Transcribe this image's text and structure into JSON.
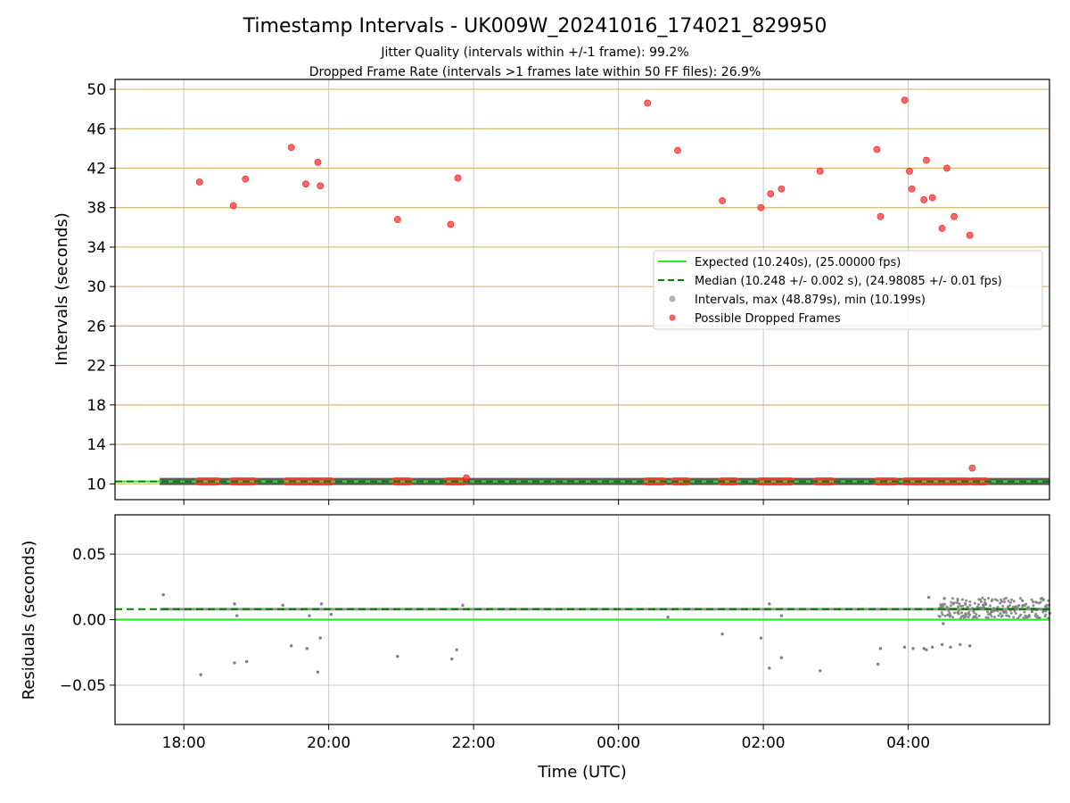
{
  "figure": {
    "title": "Timestamp Intervals - UK009W_20241016_174021_829950",
    "subtitle_1": "Jitter Quality (intervals within +/-1 frame): 99.2%",
    "subtitle_2": "Dropped Frame Rate (intervals >1 frames late within 50 FF files): 26.9%"
  },
  "colors": {
    "expected": "#22ee22",
    "median": "#008000",
    "intervals": "#808080",
    "dropped": "#ff3333",
    "hgrid_top": "#d4b868",
    "grid": "#c8c8c8"
  },
  "chart_data": [
    {
      "type": "scatter",
      "panel": "intervals",
      "ylabel": "Intervals (seconds)",
      "ylim": [
        8.4,
        51.0
      ],
      "xlim": [
        "17:03",
        "05:57"
      ],
      "yticks": [
        10,
        14,
        18,
        22,
        26,
        30,
        34,
        38,
        42,
        46,
        50
      ],
      "grid": true,
      "legend_position": "center-right",
      "legend": [
        {
          "label": "Expected (10.240s), (25.00000 fps)",
          "kind": "solid-line"
        },
        {
          "label": "Median (10.248 +/- 0.002 s), (24.98085 +/- 0.01 fps)",
          "kind": "dashed-line"
        },
        {
          "label": "Intervals, max (48.879s), min (10.199s)",
          "kind": "gray-marker"
        },
        {
          "label": "Possible Dropped Frames",
          "kind": "red-marker"
        }
      ],
      "expected": 10.24,
      "median": 10.248,
      "intervals_range": {
        "start": "17:40",
        "end": "05:57",
        "value": 10.248
      },
      "dropped_band_segments": [
        [
          "18:12",
          "18:28"
        ],
        [
          "18:40",
          "18:58"
        ],
        [
          "19:25",
          "19:42"
        ],
        [
          "19:44",
          "20:02"
        ],
        [
          "20:55",
          "21:07"
        ],
        [
          "21:38",
          "21:52"
        ],
        [
          "00:23",
          "00:37"
        ],
        [
          "00:46",
          "00:57"
        ],
        [
          "01:25",
          "01:37"
        ],
        [
          "01:57",
          "02:23"
        ],
        [
          "02:44",
          "02:57"
        ],
        [
          "03:34",
          "03:49"
        ],
        [
          "03:57",
          "04:25"
        ],
        [
          "04:25",
          "04:50"
        ],
        [
          "04:53",
          "05:04"
        ]
      ],
      "dropped_points": [
        {
          "t": "18:13",
          "y": 40.6
        },
        {
          "t": "18:41",
          "y": 38.2
        },
        {
          "t": "18:51",
          "y": 40.9
        },
        {
          "t": "19:29",
          "y": 44.1
        },
        {
          "t": "19:41",
          "y": 40.4
        },
        {
          "t": "19:51",
          "y": 42.6
        },
        {
          "t": "19:53",
          "y": 40.2
        },
        {
          "t": "20:57",
          "y": 36.8
        },
        {
          "t": "21:41",
          "y": 36.3
        },
        {
          "t": "21:47",
          "y": 41.0
        },
        {
          "t": "21:54",
          "y": 10.6
        },
        {
          "t": "00:24",
          "y": 48.6
        },
        {
          "t": "00:49",
          "y": 43.8
        },
        {
          "t": "01:26",
          "y": 38.7
        },
        {
          "t": "01:58",
          "y": 38.0
        },
        {
          "t": "02:06",
          "y": 39.4
        },
        {
          "t": "02:15",
          "y": 39.9
        },
        {
          "t": "02:47",
          "y": 41.7
        },
        {
          "t": "03:34",
          "y": 43.9
        },
        {
          "t": "03:37",
          "y": 37.1
        },
        {
          "t": "03:57",
          "y": 48.9
        },
        {
          "t": "04:01",
          "y": 41.7
        },
        {
          "t": "04:03",
          "y": 39.9
        },
        {
          "t": "04:13",
          "y": 38.8
        },
        {
          "t": "04:15",
          "y": 42.8
        },
        {
          "t": "04:20",
          "y": 39.0
        },
        {
          "t": "04:28",
          "y": 35.9
        },
        {
          "t": "04:32",
          "y": 42.0
        },
        {
          "t": "04:38",
          "y": 37.1
        },
        {
          "t": "04:51",
          "y": 35.2
        },
        {
          "t": "04:53",
          "y": 11.6
        }
      ]
    },
    {
      "type": "scatter",
      "panel": "residuals",
      "ylabel": "Residuals (seconds)",
      "xlabel": "Time (UTC)",
      "ylim": [
        -0.08,
        0.08
      ],
      "xlim": [
        "17:03",
        "05:57"
      ],
      "yticks": [
        {
          "value": 0.05,
          "label": "0.05"
        },
        {
          "value": 0.0,
          "label": "0.00"
        },
        {
          "value": -0.05,
          "label": "−0.05"
        }
      ],
      "xticks": [
        "18:00",
        "20:00",
        "22:00",
        "00:00",
        "02:00",
        "04:00"
      ],
      "grid": true,
      "expected_residual": 0.0,
      "median_residual": 0.008,
      "main_band": {
        "start": "17:40",
        "end": "05:57",
        "value": 0.008
      },
      "noisy_band": {
        "start": "04:25",
        "end": "05:57",
        "min": 0.001,
        "max": 0.017
      },
      "outliers": [
        {
          "t": "17:43",
          "y": 0.019
        },
        {
          "t": "18:14",
          "y": -0.042
        },
        {
          "t": "18:42",
          "y": -0.033
        },
        {
          "t": "18:52",
          "y": -0.032
        },
        {
          "t": "19:29",
          "y": -0.02
        },
        {
          "t": "19:42",
          "y": -0.022
        },
        {
          "t": "19:51",
          "y": -0.04
        },
        {
          "t": "19:53",
          "y": -0.014
        },
        {
          "t": "20:57",
          "y": -0.028
        },
        {
          "t": "21:42",
          "y": -0.03
        },
        {
          "t": "21:46",
          "y": -0.023
        },
        {
          "t": "01:26",
          "y": -0.011
        },
        {
          "t": "01:58",
          "y": -0.014
        },
        {
          "t": "02:05",
          "y": -0.037
        },
        {
          "t": "02:15",
          "y": -0.029
        },
        {
          "t": "02:47",
          "y": -0.039
        },
        {
          "t": "03:35",
          "y": -0.034
        },
        {
          "t": "03:37",
          "y": -0.022
        },
        {
          "t": "03:57",
          "y": -0.021
        },
        {
          "t": "04:04",
          "y": -0.022
        },
        {
          "t": "04:13",
          "y": -0.022
        },
        {
          "t": "04:15",
          "y": -0.023
        },
        {
          "t": "04:20",
          "y": -0.021
        },
        {
          "t": "04:28",
          "y": -0.019
        },
        {
          "t": "04:51",
          "y": -0.02
        },
        {
          "t": "04:35",
          "y": -0.021
        },
        {
          "t": "04:43",
          "y": -0.019
        },
        {
          "t": "02:05",
          "y": 0.012
        },
        {
          "t": "04:17",
          "y": 0.017
        },
        {
          "t": "18:42",
          "y": 0.012
        },
        {
          "t": "19:54",
          "y": 0.012
        },
        {
          "t": "21:51",
          "y": 0.011
        },
        {
          "t": "00:41",
          "y": 0.002
        },
        {
          "t": "02:15",
          "y": 0.003
        },
        {
          "t": "04:29",
          "y": -0.003
        },
        {
          "t": "19:22",
          "y": 0.011
        },
        {
          "t": "19:44",
          "y": 0.003
        },
        {
          "t": "20:02",
          "y": 0.004
        },
        {
          "t": "18:44",
          "y": 0.003
        }
      ]
    }
  ]
}
